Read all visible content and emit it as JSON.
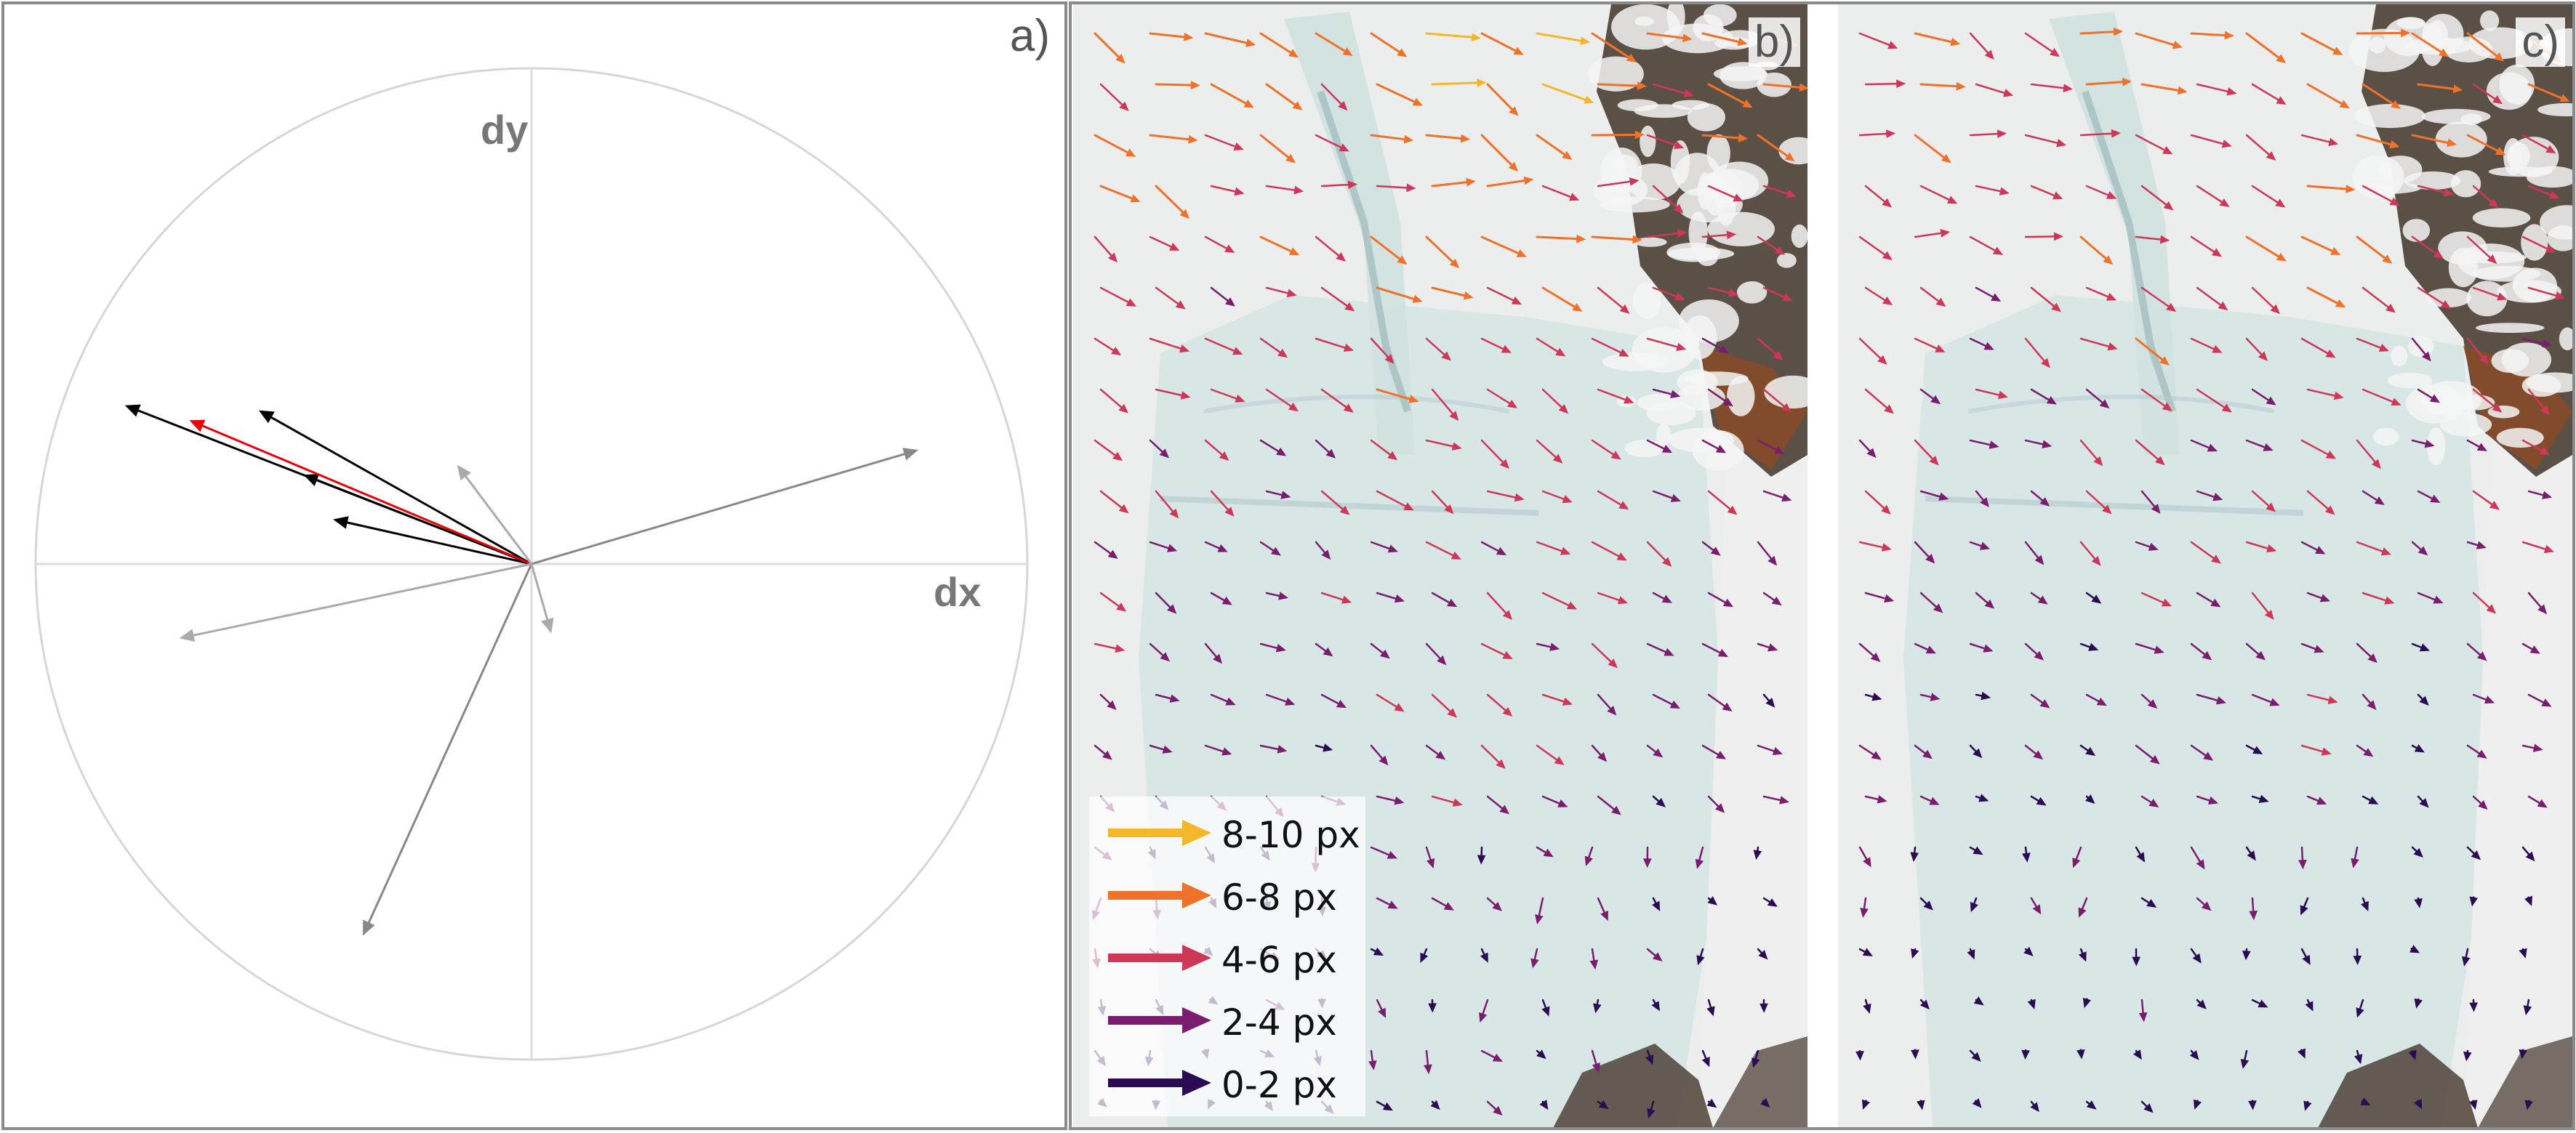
{
  "panel_a": {
    "label": "a)",
    "axis_x_label": "dx",
    "axis_y_label": "dy",
    "vectors": [
      {
        "dx": -0.82,
        "dy": 0.32,
        "color": "#000000"
      },
      {
        "dx": -0.55,
        "dy": 0.31,
        "color": "#000000"
      },
      {
        "dx": -0.4,
        "dy": 0.09,
        "color": "#000000"
      },
      {
        "dx": -0.46,
        "dy": 0.18,
        "color": "#000000"
      },
      {
        "dx": -0.69,
        "dy": 0.29,
        "color": "#e8000b"
      },
      {
        "dx": 0.78,
        "dy": 0.23,
        "color": "#888888"
      },
      {
        "dx": -0.71,
        "dy": -0.15,
        "color": "#aaaaaa"
      },
      {
        "dx": -0.34,
        "dy": -0.75,
        "color": "#888888"
      },
      {
        "dx": -0.15,
        "dy": 0.2,
        "color": "#aaaaaa"
      },
      {
        "dx": 0.04,
        "dy": -0.14,
        "color": "#aaaaaa"
      }
    ]
  },
  "panel_b": {
    "label": "b)"
  },
  "panel_c": {
    "label": "c)"
  },
  "legend": {
    "entries": [
      {
        "label": "8-10 px",
        "color": "#f5b72a"
      },
      {
        "label": "6-8 px",
        "color": "#f0722a"
      },
      {
        "label": "4-6 px",
        "color": "#cf3758"
      },
      {
        "label": "2-4 px",
        "color": "#7a1d6e"
      },
      {
        "label": "0-2 px",
        "color": "#2b0c52"
      }
    ]
  },
  "colors": {
    "snow": "#eceeee",
    "ice": "#d7e4e4",
    "rock": "#4e4236",
    "rock_red": "#8a4a28"
  }
}
